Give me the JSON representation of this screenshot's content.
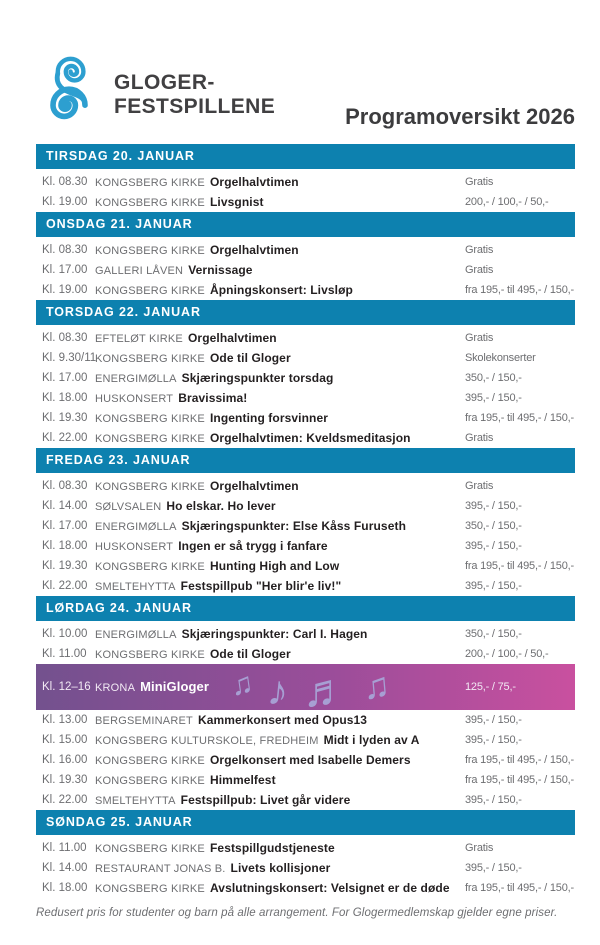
{
  "header": {
    "logo_line1": "GLOGER-",
    "logo_line2": "FESTSPILLENE",
    "title": "Programoversikt 2026",
    "logo_icon": "gloger-spiral-logo"
  },
  "colors": {
    "bar_teal": "#0d81af",
    "logo_blue": "#2d9fd0",
    "gradient_left": "#73518e",
    "gradient_right": "#c9509f",
    "note_lavender": "#a79fd3",
    "text_dark": "#231f20",
    "text_gray": "#6d6e71"
  },
  "minigloger_notes": [
    "♫",
    "♪",
    "♬",
    "♫"
  ],
  "sections": [
    {
      "day": "TIRSDAG 20. JANUAR",
      "rows": [
        {
          "time": "Kl. 08.30",
          "venue": "KONGSBERG KIRKE",
          "event": "Orgelhalvtimen",
          "price": "Gratis",
          "special": false
        },
        {
          "time": "Kl. 19.00",
          "venue": "KONGSBERG KIRKE",
          "event": "Livsgnist",
          "price": "200,- / 100,- / 50,-",
          "special": false
        }
      ]
    },
    {
      "day": "ONSDAG 21. JANUAR",
      "rows": [
        {
          "time": "Kl. 08.30",
          "venue": "KONGSBERG KIRKE",
          "event": "Orgelhalvtimen",
          "price": "Gratis",
          "special": false
        },
        {
          "time": "Kl. 17.00",
          "venue": "GALLERI LÅVEN",
          "event": "Vernissage",
          "price": "Gratis",
          "special": false
        },
        {
          "time": "Kl. 19.00",
          "venue": "KONGSBERG KIRKE",
          "event": "Åpningskonsert: Livsløp",
          "price": "fra 195,- til 495,- / 150,-",
          "special": false
        }
      ]
    },
    {
      "day": "TORSDAG 22. JANUAR",
      "rows": [
        {
          "time": "Kl. 08.30",
          "venue": "EFTELØT KIRKE",
          "event": "Orgelhalvtimen",
          "price": "Gratis",
          "special": false
        },
        {
          "time": "Kl. 9.30/11",
          "venue": "KONGSBERG KIRKE",
          "event": "Ode til Gloger",
          "price": "Skolekonserter",
          "special": false
        },
        {
          "time": "Kl. 17.00",
          "venue": "ENERGIMØLLA",
          "event": "Skjæringspunkter torsdag",
          "price": "350,- / 150,-",
          "special": false
        },
        {
          "time": "Kl. 18.00",
          "venue": "HUSKONSERT",
          "event": "Bravissima!",
          "price": "395,- / 150,-",
          "special": false
        },
        {
          "time": "Kl. 19.30",
          "venue": "KONGSBERG KIRKE",
          "event": "Ingenting forsvinner",
          "price": "fra 195,- til 495,- / 150,-",
          "special": false
        },
        {
          "time": "Kl. 22.00",
          "venue": "KONGSBERG KIRKE",
          "event": "Orgelhalvtimen: Kveldsmeditasjon",
          "price": "Gratis",
          "special": false
        }
      ]
    },
    {
      "day": "FREDAG 23. JANUAR",
      "rows": [
        {
          "time": "Kl. 08.30",
          "venue": "KONGSBERG KIRKE",
          "event": "Orgelhalvtimen",
          "price": "Gratis",
          "special": false
        },
        {
          "time": "Kl. 14.00",
          "venue": "SØLVSALEN",
          "event": "Ho elskar. Ho lever",
          "price": "395,- / 150,-",
          "special": false
        },
        {
          "time": "Kl. 17.00",
          "venue": "ENERGIMØLLA",
          "event": "Skjæringspunkter: Else Kåss Furuseth",
          "price": "350,- / 150,-",
          "special": false
        },
        {
          "time": "Kl. 18.00",
          "venue": "HUSKONSERT",
          "event": "Ingen er så trygg i fanfare",
          "price": "395,- / 150,-",
          "special": false
        },
        {
          "time": "Kl. 19.30",
          "venue": "KONGSBERG KIRKE",
          "event": "Hunting High and Low",
          "price": "fra 195,- til 495,- / 150,-",
          "special": false
        },
        {
          "time": "Kl. 22.00",
          "venue": "SMELTEHYTTA",
          "event": "Festspillpub \"Her blir'e liv!\"",
          "price": "395,- / 150,-",
          "special": false
        }
      ]
    },
    {
      "day": "LØRDAG 24. JANUAR",
      "rows": [
        {
          "time": "Kl. 10.00",
          "venue": "ENERGIMØLLA",
          "event": "Skjæringspunkter: Carl I. Hagen",
          "price": "350,- / 150,-",
          "special": false
        },
        {
          "time": "Kl. 11.00",
          "venue": "KONGSBERG KIRKE",
          "event": "Ode til Gloger",
          "price": "200,- / 100,- / 50,-",
          "special": false
        },
        {
          "time": "Kl. 12–16",
          "venue": "KRONA",
          "event": "MiniGloger",
          "price": "125,- / 75,-",
          "special": true
        },
        {
          "time": "Kl. 13.00",
          "venue": "BERGSEMINARET",
          "event": "Kammerkonsert med Opus13",
          "price": "395,- / 150,-",
          "special": false
        },
        {
          "time": "Kl. 15.00",
          "venue": "KONGSBERG KULTURSKOLE, FREDHEIM",
          "event": "Midt i lyden av A",
          "price": "395,- / 150,-",
          "special": false
        },
        {
          "time": "Kl. 16.00",
          "venue": "KONGSBERG KIRKE",
          "event": "Orgelkonsert med Isabelle Demers",
          "price": "fra 195,- til 495,- / 150,-",
          "special": false
        },
        {
          "time": "Kl. 19.30",
          "venue": "KONGSBERG KIRKE",
          "event": "Himmelfest",
          "price": "fra 195,- til 495,- / 150,-",
          "special": false
        },
        {
          "time": "Kl. 22.00",
          "venue": "SMELTEHYTTA",
          "event": "Festspillpub: Livet går videre",
          "price": "395,- / 150,-",
          "special": false
        }
      ]
    },
    {
      "day": "SØNDAG 25. JANUAR",
      "rows": [
        {
          "time": "Kl. 11.00",
          "venue": "KONGSBERG KIRKE",
          "event": "Festspillgudstjeneste",
          "price": "Gratis",
          "special": false
        },
        {
          "time": "Kl. 14.00",
          "venue": "RESTAURANT JONAS B.",
          "event": "Livets kollisjoner",
          "price": "395,- / 150,-",
          "special": false
        },
        {
          "time": "Kl. 18.00",
          "venue": "KONGSBERG KIRKE",
          "event": "Avslutningskonsert: Velsignet er de døde",
          "price": "fra 195,- til 495,- / 150,-",
          "special": false
        }
      ]
    }
  ],
  "footer": "Redusert pris for studenter og barn på alle arrangement. For Glogermedlemskap gjelder egne priser."
}
